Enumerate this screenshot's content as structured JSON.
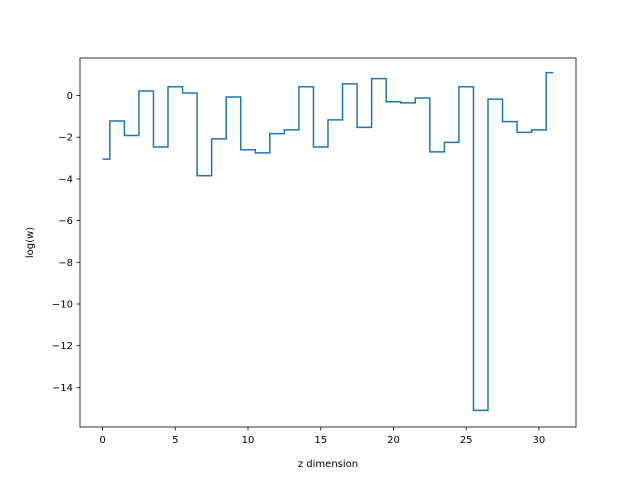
{
  "chart_data": {
    "type": "line",
    "drawstyle": "steps-mid",
    "title": "",
    "xlabel": "z dimension",
    "ylabel": "log(w)",
    "xlim": [
      -1.55,
      32.55
    ],
    "ylim": [
      -15.9,
      1.8
    ],
    "xticks": [
      0,
      5,
      10,
      15,
      20,
      25,
      30
    ],
    "yticks": [
      0,
      -2,
      -4,
      -6,
      -8,
      -10,
      -12,
      -14
    ],
    "grid": false,
    "legend": "none",
    "line_color": "#1f77b4",
    "series": [
      {
        "x": [
          0,
          1,
          2,
          3,
          4,
          5,
          6,
          7,
          8,
          9,
          10,
          11,
          12,
          13,
          14,
          15,
          16,
          17,
          18,
          19,
          20,
          21,
          22,
          23,
          24,
          25,
          26,
          27,
          28,
          29,
          30,
          31
        ],
        "values": [
          -3.05,
          -1.22,
          -1.92,
          0.22,
          -2.47,
          0.42,
          0.12,
          -3.85,
          -2.08,
          -0.07,
          -2.6,
          -2.75,
          -1.83,
          -1.65,
          0.42,
          -2.47,
          -1.17,
          0.56,
          -1.53,
          0.81,
          -0.3,
          -0.35,
          -0.12,
          -2.7,
          -2.25,
          0.42,
          -15.1,
          -0.17,
          -1.25,
          -1.77,
          -1.65,
          1.1
        ]
      }
    ]
  }
}
